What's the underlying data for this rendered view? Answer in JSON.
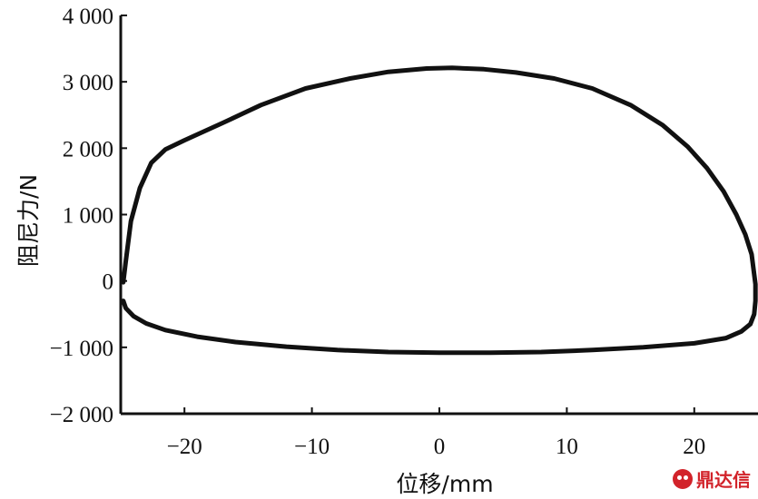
{
  "chart_data": {
    "type": "line",
    "xlabel": "位移/mm",
    "ylabel": "阻尼力/N",
    "xlim": [
      -25,
      25
    ],
    "ylim": [
      -2000,
      4000
    ],
    "xticks": [
      -20,
      -10,
      0,
      10,
      20
    ],
    "xtick_labels": [
      "−20",
      "−10",
      "0",
      "10",
      "20"
    ],
    "yticks": [
      4000,
      3000,
      2000,
      1000,
      0,
      -1000,
      -2000
    ],
    "ytick_labels": [
      "4 000",
      "3 000",
      "2 000",
      "1 000",
      "0",
      "−1 000",
      "−2 000"
    ],
    "grid": false,
    "series": [
      {
        "x": [
          -24.8,
          -24.6,
          -24.2,
          -23.5,
          -22.6,
          -21.5,
          -20.0,
          -17.0,
          -14.0,
          -10.5,
          -7.0,
          -4.0,
          -1.0,
          1.0,
          3.5,
          6.0,
          9.0,
          12.0,
          15.0,
          17.5,
          19.5,
          21.0,
          22.3,
          23.3,
          24.0,
          24.5,
          24.7,
          24.8,
          24.8,
          24.7,
          24.4,
          23.7,
          22.5,
          20.0,
          16.0,
          12.0,
          8.0,
          4.0,
          0.0,
          -4.0,
          -8.0,
          -12.0,
          -16.0,
          -19.0,
          -21.5,
          -23.0,
          -24.0,
          -24.6,
          -24.8
        ],
        "y": [
          -20,
          300,
          900,
          1400,
          1780,
          1980,
          2120,
          2380,
          2650,
          2900,
          3050,
          3150,
          3200,
          3210,
          3190,
          3140,
          3050,
          2900,
          2650,
          2350,
          2020,
          1700,
          1350,
          1000,
          700,
          400,
          100,
          -50,
          -300,
          -500,
          -650,
          -760,
          -860,
          -940,
          -1000,
          -1040,
          -1070,
          -1080,
          -1080,
          -1070,
          -1040,
          -990,
          -920,
          -840,
          -740,
          -640,
          -530,
          -410,
          -300
        ]
      }
    ]
  },
  "watermark": {
    "text": "鼎达信"
  }
}
